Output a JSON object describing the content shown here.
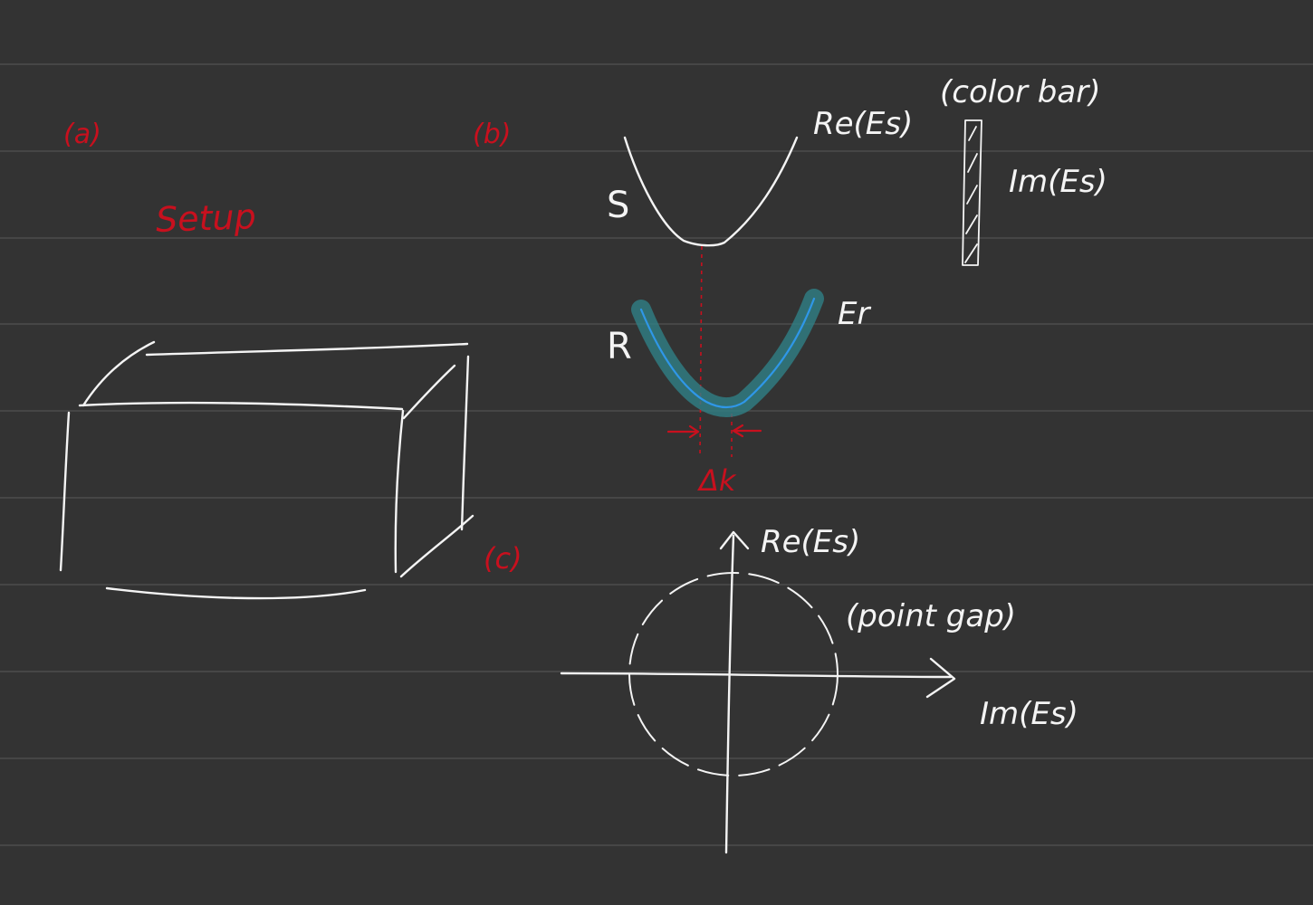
{
  "colors": {
    "background": "#333333",
    "ruled_line": "#4d4d4d",
    "ink": "#f4f4f4",
    "red_ink": "#c8101e",
    "highlight": "#2f7f86",
    "blue_curve": "#2f97e8"
  },
  "panel_a": {
    "label": "(a)",
    "title": "Setup"
  },
  "panel_b": {
    "label": "(b)",
    "surface_label": "S",
    "surface_curve_label": "Re(Es)",
    "colorbar_label": "(color bar)",
    "colorbar_axis_label": "Im(Es)",
    "reservoir_label": "R",
    "reservoir_curve_label": "Er",
    "shift_label": "Δk"
  },
  "panel_c": {
    "label": "(c)",
    "y_axis_label": "Re(Es)",
    "x_axis_label": "Im(Es)",
    "annotation": "(point gap)"
  }
}
